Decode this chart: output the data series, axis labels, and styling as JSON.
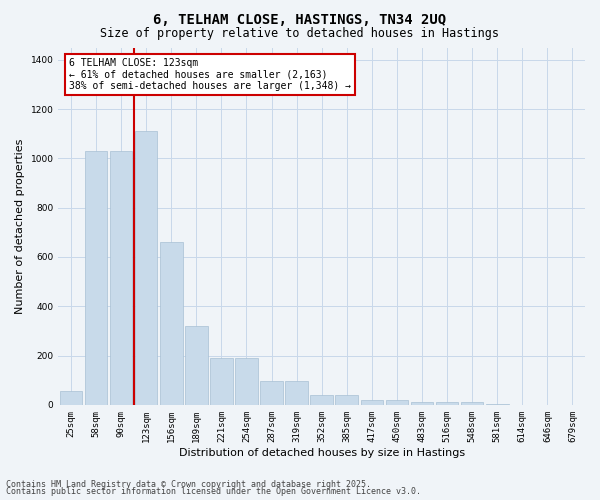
{
  "title_line1": "6, TELHAM CLOSE, HASTINGS, TN34 2UQ",
  "title_line2": "Size of property relative to detached houses in Hastings",
  "xlabel": "Distribution of detached houses by size in Hastings",
  "ylabel": "Number of detached properties",
  "categories": [
    "25sqm",
    "58sqm",
    "90sqm",
    "123sqm",
    "156sqm",
    "189sqm",
    "221sqm",
    "254sqm",
    "287sqm",
    "319sqm",
    "352sqm",
    "385sqm",
    "417sqm",
    "450sqm",
    "483sqm",
    "516sqm",
    "548sqm",
    "581sqm",
    "614sqm",
    "646sqm",
    "679sqm"
  ],
  "values": [
    55,
    1030,
    1030,
    1110,
    660,
    320,
    190,
    190,
    95,
    95,
    40,
    40,
    20,
    20,
    13,
    13,
    10,
    2,
    0,
    0,
    0
  ],
  "bar_color": "#c8daea",
  "bar_edge_color": "#a8c0d4",
  "vline_bar_index": 3,
  "vline_color": "#cc0000",
  "annotation_text": "6 TELHAM CLOSE: 123sqm\n← 61% of detached houses are smaller (2,163)\n38% of semi-detached houses are larger (1,348) →",
  "annotation_box_color": "#ffffff",
  "annotation_box_edge": "#cc0000",
  "ylim": [
    0,
    1450
  ],
  "yticks": [
    0,
    200,
    400,
    600,
    800,
    1000,
    1200,
    1400
  ],
  "bg_color": "#f0f4f8",
  "grid_color": "#c8d8ea",
  "footer_line1": "Contains HM Land Registry data © Crown copyright and database right 2025.",
  "footer_line2": "Contains public sector information licensed under the Open Government Licence v3.0.",
  "title_fontsize": 10,
  "subtitle_fontsize": 8.5,
  "axis_label_fontsize": 8,
  "tick_fontsize": 6.5,
  "annotation_fontsize": 7,
  "footer_fontsize": 6
}
